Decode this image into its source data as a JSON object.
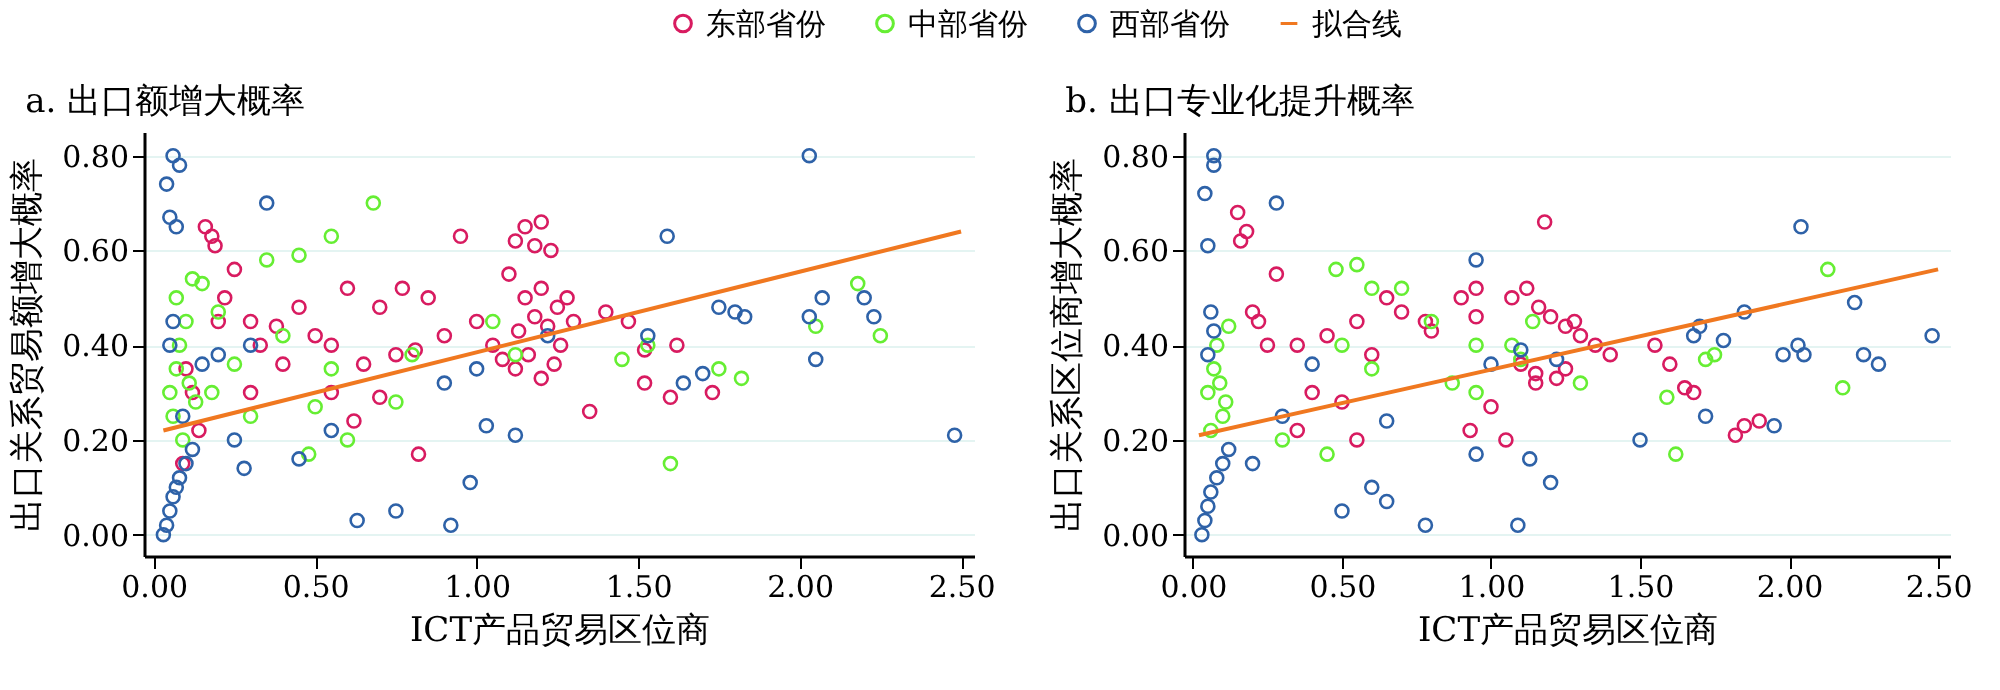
{
  "chart_data": [
    {
      "type": "scatter",
      "title": "a. 出口额增大概率",
      "xlabel": "ICT产品贸易区位商",
      "ylabel": "出口关系贸易额增大概率",
      "xlim": [
        -0.03,
        2.54
      ],
      "ylim": [
        -0.045,
        0.85
      ],
      "xticks": [
        {
          "value": 0,
          "label": "0.00"
        },
        {
          "value": 0.5,
          "label": "0.50"
        },
        {
          "value": 1,
          "label": "1.00"
        },
        {
          "value": 1.5,
          "label": "1.50"
        },
        {
          "value": 2,
          "label": "2.00"
        },
        {
          "value": 2.5,
          "label": "2.50"
        }
      ],
      "yticks": [
        {
          "value": 0,
          "label": "0.00"
        },
        {
          "value": 0.2,
          "label": "0.20"
        },
        {
          "value": 0.4,
          "label": "0.40"
        },
        {
          "value": 0.6,
          "label": "0.60"
        },
        {
          "value": 0.8,
          "label": "0.80"
        }
      ],
      "grid": "y",
      "legend": "top",
      "series": [
        {
          "name": "东部省份",
          "color": "#d81b60",
          "marker": "circle",
          "x": [
            0.16,
            0.18,
            0.19,
            0.25,
            0.22,
            0.3,
            0.2,
            0.33,
            0.38,
            0.45,
            0.5,
            0.55,
            0.6,
            0.65,
            0.7,
            0.75,
            0.77,
            0.81,
            0.85,
            0.4,
            0.3,
            0.55,
            0.7,
            0.82,
            0.12,
            0.14,
            0.1,
            0.09,
            0.95,
            1.12,
            1.15,
            1.18,
            1.2,
            1.23,
            1.1,
            1.15,
            1.2,
            1.25,
            1.3,
            1.13,
            1.18,
            1.22,
            1.28,
            1.05,
            1.08,
            1.12,
            1.16,
            1.2,
            1.24,
            1.4,
            1.47,
            1.52,
            1.6,
            1.52,
            1.35,
            1.26,
            1.62,
            1.73,
            1.0,
            0.9,
            0.62
          ],
          "values": [
            0.65,
            0.63,
            0.61,
            0.56,
            0.5,
            0.45,
            0.45,
            0.4,
            0.44,
            0.48,
            0.42,
            0.4,
            0.52,
            0.36,
            0.48,
            0.38,
            0.52,
            0.39,
            0.5,
            0.36,
            0.3,
            0.3,
            0.29,
            0.17,
            0.3,
            0.22,
            0.35,
            0.15,
            0.63,
            0.62,
            0.65,
            0.61,
            0.66,
            0.6,
            0.55,
            0.5,
            0.52,
            0.48,
            0.45,
            0.43,
            0.46,
            0.44,
            0.5,
            0.4,
            0.37,
            0.35,
            0.38,
            0.33,
            0.36,
            0.47,
            0.45,
            0.39,
            0.29,
            0.32,
            0.26,
            0.4,
            0.4,
            0.3,
            0.45,
            0.42,
            0.24
          ]
        },
        {
          "name": "中部省份",
          "color": "#66ee33",
          "marker": "circle",
          "x": [
            0.05,
            0.07,
            0.08,
            0.1,
            0.06,
            0.12,
            0.15,
            0.09,
            0.11,
            0.13,
            0.07,
            0.45,
            0.55,
            0.68,
            0.35,
            0.2,
            0.4,
            0.55,
            0.6,
            0.48,
            0.5,
            0.3,
            0.75,
            0.8,
            1.05,
            1.12,
            1.6,
            1.75,
            1.82,
            2.05,
            2.18,
            2.25,
            1.53,
            1.45,
            0.25,
            0.18
          ],
          "values": [
            0.3,
            0.35,
            0.4,
            0.45,
            0.25,
            0.54,
            0.53,
            0.2,
            0.32,
            0.28,
            0.5,
            0.59,
            0.63,
            0.7,
            0.58,
            0.47,
            0.42,
            0.35,
            0.2,
            0.17,
            0.27,
            0.25,
            0.28,
            0.38,
            0.45,
            0.38,
            0.15,
            0.35,
            0.33,
            0.44,
            0.53,
            0.42,
            0.4,
            0.37,
            0.36,
            0.3
          ]
        },
        {
          "name": "西部省份",
          "color": "#2e62a8",
          "marker": "circle",
          "x": [
            0.06,
            0.08,
            0.04,
            0.05,
            0.07,
            0.35,
            0.15,
            0.03,
            0.04,
            0.05,
            0.06,
            0.07,
            0.08,
            0.1,
            0.12,
            0.05,
            0.06,
            0.09,
            0.55,
            0.63,
            0.75,
            0.45,
            0.28,
            0.3,
            1.03,
            0.9,
            0.98,
            1.22,
            1.0,
            1.12,
            1.59,
            1.75,
            1.8,
            1.83,
            2.03,
            2.03,
            2.07,
            2.2,
            2.23,
            2.05,
            1.53,
            1.64,
            1.7,
            2.48,
            0.92,
            0.2,
            0.25
          ],
          "values": [
            0.8,
            0.78,
            0.74,
            0.67,
            0.65,
            0.7,
            0.36,
            0.0,
            0.02,
            0.05,
            0.08,
            0.1,
            0.12,
            0.15,
            0.18,
            0.4,
            0.45,
            0.25,
            0.22,
            0.03,
            0.05,
            0.16,
            0.14,
            0.4,
            0.23,
            0.32,
            0.11,
            0.42,
            0.35,
            0.21,
            0.63,
            0.48,
            0.47,
            0.46,
            0.8,
            0.46,
            0.5,
            0.5,
            0.46,
            0.37,
            0.42,
            0.32,
            0.34,
            0.21,
            0.02,
            0.38,
            0.2
          ]
        },
        {
          "type": "line",
          "name": "拟合线",
          "color": "#f07820",
          "marker": "none",
          "x": [
            0.03,
            2.5
          ],
          "values": [
            0.22,
            0.64
          ]
        }
      ]
    },
    {
      "type": "scatter",
      "title": "b. 出口专业化提升概率",
      "xlabel": "ICT产品贸易区位商",
      "ylabel": "出口关系区位商增大概率",
      "xlim": [
        -0.03,
        2.54
      ],
      "ylim": [
        -0.045,
        0.85
      ],
      "xticks": [
        {
          "value": 0,
          "label": "0.00"
        },
        {
          "value": 0.5,
          "label": "0.50"
        },
        {
          "value": 1,
          "label": "1.00"
        },
        {
          "value": 1.5,
          "label": "1.50"
        },
        {
          "value": 2,
          "label": "2.00"
        },
        {
          "value": 2.5,
          "label": "2.50"
        }
      ],
      "yticks": [
        {
          "value": 0,
          "label": "0.00"
        },
        {
          "value": 0.2,
          "label": "0.20"
        },
        {
          "value": 0.4,
          "label": "0.40"
        },
        {
          "value": 0.6,
          "label": "0.60"
        },
        {
          "value": 0.8,
          "label": "0.80"
        }
      ],
      "grid": "y",
      "legend": "top",
      "series": [
        {
          "name": "东部省份",
          "color": "#d81b60",
          "marker": "circle",
          "x": [
            0.15,
            0.18,
            0.16,
            0.28,
            0.2,
            0.22,
            0.25,
            0.35,
            0.45,
            0.55,
            0.65,
            0.7,
            0.6,
            0.4,
            0.5,
            0.35,
            0.55,
            0.8,
            0.78,
            0.95,
            1.18,
            1.07,
            1.12,
            1.16,
            1.2,
            1.25,
            1.3,
            1.35,
            1.4,
            1.1,
            1.15,
            1.22,
            1.28,
            0.9,
            0.95,
            1.0,
            1.05,
            0.93,
            1.6,
            1.65,
            1.68,
            1.55,
            1.82,
            1.85,
            1.9,
            1.25,
            1.15
          ],
          "values": [
            0.68,
            0.64,
            0.62,
            0.55,
            0.47,
            0.45,
            0.4,
            0.4,
            0.42,
            0.45,
            0.5,
            0.47,
            0.38,
            0.3,
            0.28,
            0.22,
            0.2,
            0.43,
            0.45,
            0.46,
            0.66,
            0.5,
            0.52,
            0.48,
            0.46,
            0.44,
            0.42,
            0.4,
            0.38,
            0.36,
            0.34,
            0.33,
            0.45,
            0.5,
            0.52,
            0.27,
            0.2,
            0.22,
            0.36,
            0.31,
            0.3,
            0.4,
            0.21,
            0.23,
            0.24,
            0.35,
            0.32
          ]
        },
        {
          "name": "中部省份",
          "color": "#66ee33",
          "marker": "circle",
          "x": [
            0.05,
            0.07,
            0.08,
            0.1,
            0.06,
            0.12,
            0.09,
            0.11,
            0.48,
            0.55,
            0.6,
            0.5,
            0.3,
            0.45,
            0.7,
            0.8,
            0.95,
            0.87,
            0.6,
            1.07,
            1.1,
            1.3,
            1.59,
            1.62,
            1.72,
            1.75,
            2.13,
            2.18,
            1.14,
            0.95
          ],
          "values": [
            0.3,
            0.35,
            0.4,
            0.25,
            0.22,
            0.44,
            0.32,
            0.28,
            0.56,
            0.57,
            0.52,
            0.4,
            0.2,
            0.17,
            0.52,
            0.45,
            0.4,
            0.32,
            0.35,
            0.4,
            0.37,
            0.32,
            0.29,
            0.17,
            0.37,
            0.38,
            0.56,
            0.31,
            0.45,
            0.3
          ]
        },
        {
          "name": "西部省份",
          "color": "#2e62a8",
          "marker": "circle",
          "x": [
            0.07,
            0.07,
            0.04,
            0.05,
            0.28,
            0.06,
            0.95,
            0.2,
            0.5,
            0.6,
            0.65,
            0.78,
            0.95,
            0.65,
            1.0,
            1.1,
            1.22,
            1.09,
            1.2,
            1.13,
            1.68,
            1.7,
            1.78,
            1.85,
            2.04,
            2.03,
            1.98,
            2.05,
            2.22,
            2.25,
            2.3,
            2.48,
            1.72,
            1.95,
            1.5,
            0.4,
            0.3,
            0.03,
            0.04,
            0.05,
            0.06,
            0.08,
            0.1,
            0.12,
            0.05,
            0.07
          ],
          "values": [
            0.8,
            0.78,
            0.72,
            0.61,
            0.7,
            0.47,
            0.58,
            0.15,
            0.05,
            0.1,
            0.07,
            0.02,
            0.17,
            0.24,
            0.36,
            0.39,
            0.37,
            0.02,
            0.11,
            0.16,
            0.42,
            0.44,
            0.41,
            0.47,
            0.65,
            0.4,
            0.38,
            0.38,
            0.49,
            0.38,
            0.36,
            0.42,
            0.25,
            0.23,
            0.2,
            0.36,
            0.25,
            0.0,
            0.03,
            0.06,
            0.09,
            0.12,
            0.15,
            0.18,
            0.38,
            0.43
          ]
        },
        {
          "type": "line",
          "name": "拟合线",
          "color": "#f07820",
          "marker": "none",
          "x": [
            0.02,
            2.5
          ],
          "values": [
            0.21,
            0.56
          ]
        }
      ]
    }
  ]
}
